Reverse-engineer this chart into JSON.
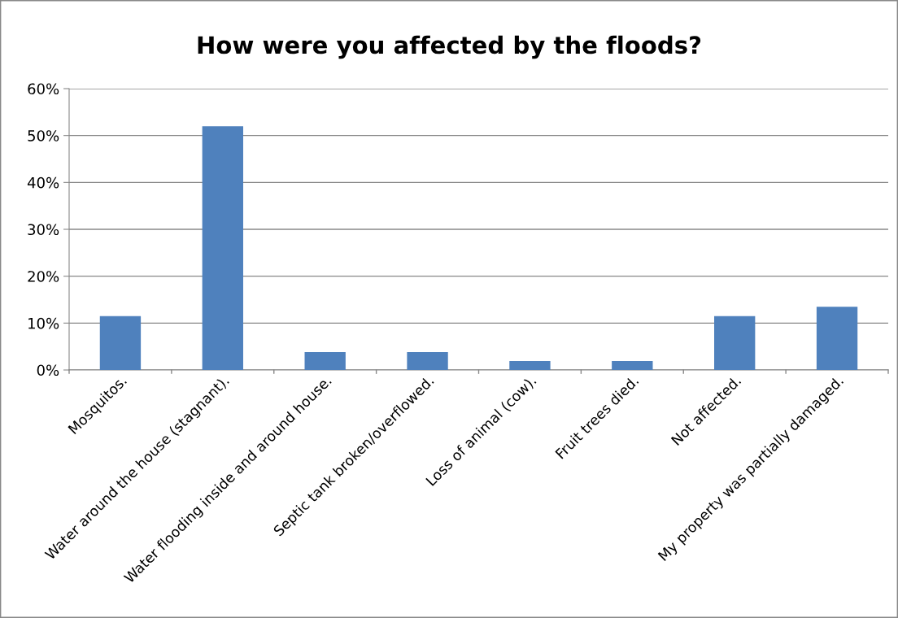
{
  "chart_data": {
    "type": "bar",
    "title": "How were you affected by the floods?",
    "categories": [
      "Mosquitos.",
      "Water around the house (stagnant).",
      "Water flooding inside and around house.",
      "Septic tank broken/overflowed.",
      "Loss of animal (cow).",
      "Fruit trees died.",
      "Not affected.",
      "My property was partially damaged."
    ],
    "values": [
      11.5,
      52,
      3.8,
      3.8,
      1.9,
      1.9,
      11.5,
      13.5
    ],
    "color": "#4f81bd",
    "ylim": [
      0,
      60
    ],
    "yticks": [
      {
        "value": 0,
        "label": "0%"
      },
      {
        "value": 10,
        "label": "10%"
      },
      {
        "value": 20,
        "label": "20%"
      },
      {
        "value": 30,
        "label": "30%"
      },
      {
        "value": 40,
        "label": "40%"
      },
      {
        "value": 50,
        "label": "50%"
      },
      {
        "value": 60,
        "label": "60%"
      }
    ],
    "grid": "y"
  }
}
